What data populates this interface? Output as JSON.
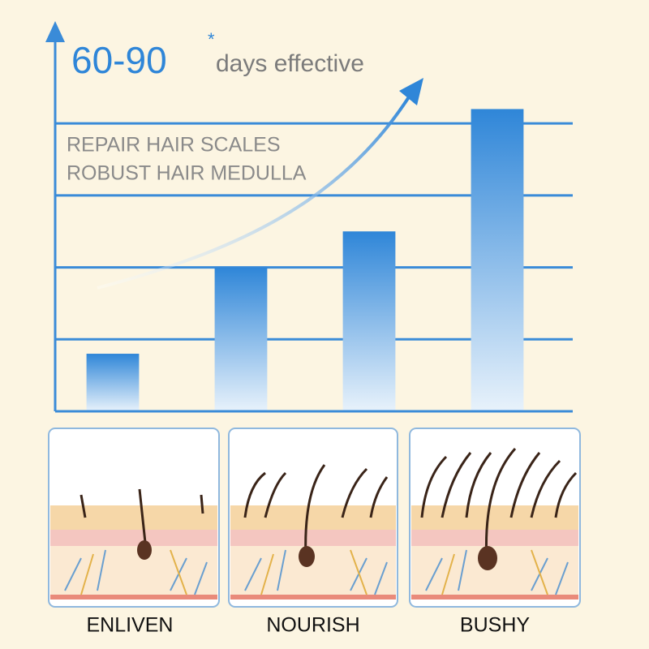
{
  "chart_data": {
    "type": "bar",
    "title": "60-90",
    "title_note": "*",
    "subtitle": "days effective",
    "annotations": [
      "REPAIR HAIR SCALES",
      "ROBUST HAIR MEDULLA"
    ],
    "categories": [
      null,
      null,
      null,
      null
    ],
    "values": [
      0.8,
      2,
      2.5,
      4.2
    ],
    "color": "#2f86d8",
    "ylim": [
      0,
      5.4
    ],
    "yticks": [
      1,
      2,
      3,
      4
    ],
    "grid": true
  },
  "panels": [
    {
      "label": "ENLIVEN"
    },
    {
      "label": "NOURISH"
    },
    {
      "label": "BUSHY"
    }
  ]
}
